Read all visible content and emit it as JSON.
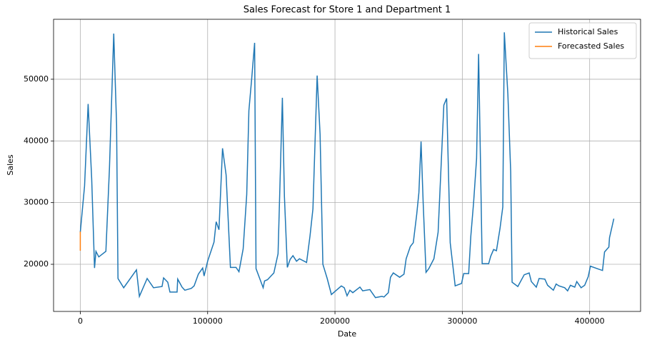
{
  "chart_data": {
    "type": "line",
    "title": "Sales Forecast for Store 1 and Department 1",
    "x_label": "Date",
    "y_label": "Sales",
    "xlim": [
      -21000,
      440000
    ],
    "ylim": [
      12360,
      59720
    ],
    "xticks": [
      0,
      100000,
      200000,
      300000,
      400000
    ],
    "yticks": [
      20000,
      30000,
      40000,
      50000
    ],
    "grid": true,
    "legend": "upper right",
    "series": [
      {
        "name": "Historical Sales",
        "color": "#1f77b4",
        "x": [
          0,
          3350,
          6150,
          8940,
          11170,
          12300,
          14500,
          20100,
          22900,
          26260,
          28500,
          29600,
          34080,
          44100,
          46400,
          52500,
          57500,
          64200,
          65400,
          68700,
          70400,
          76000,
          76500,
          79900,
          82100,
          87200,
          89400,
          92700,
          96100,
          97200,
          100000,
          105000,
          106700,
          108900,
          111700,
          114500,
          117900,
          122300,
          124600,
          127900,
          130700,
          132400,
          134600,
          136900,
          138000,
          143600,
          144700,
          147000,
          152000,
          155300,
          158700,
          160300,
          162600,
          164800,
          167000,
          169800,
          172100,
          177700,
          180400,
          182700,
          186000,
          188300,
          190500,
          193900,
          197200,
          205000,
          207300,
          209500,
          211700,
          214000,
          219600,
          221800,
          227400,
          231800,
          236900,
          238500,
          241900,
          243600,
          245800,
          250800,
          254200,
          255900,
          259200,
          261500,
          264200,
          265900,
          267600,
          269300,
          271500,
          273700,
          277700,
          281000,
          285500,
          287700,
          290500,
          294400,
          299400,
          301100,
          305000,
          306700,
          308900,
          311200,
          312800,
          314500,
          315600,
          320700,
          322300,
          324600,
          326800,
          329600,
          331800,
          333000,
          335800,
          338000,
          339100,
          343600,
          348600,
          352500,
          354200,
          358100,
          360300,
          364800,
          367000,
          371500,
          373700,
          375900,
          380400,
          382700,
          384900,
          388300,
          389900,
          393300,
          396100,
          398900,
          400600,
          407300,
          410100,
          411700,
          415100,
          415600,
          419000
        ],
        "values": [
          25200,
          32700,
          46000,
          33900,
          19400,
          22100,
          21200,
          22100,
          35600,
          57400,
          42600,
          17700,
          16200,
          19100,
          14800,
          17700,
          16200,
          16400,
          17800,
          17100,
          15500,
          15500,
          17600,
          16300,
          15800,
          16100,
          16500,
          18400,
          19400,
          18100,
          20500,
          23600,
          26900,
          25600,
          38800,
          34500,
          19500,
          19500,
          18800,
          22500,
          31300,
          44900,
          50100,
          55900,
          19300,
          16200,
          17300,
          17500,
          18600,
          21700,
          47000,
          31000,
          19500,
          20800,
          21400,
          20500,
          20900,
          20300,
          24600,
          29000,
          50600,
          41100,
          20000,
          17700,
          15100,
          16500,
          16200,
          14900,
          15800,
          15400,
          16300,
          15700,
          15900,
          14600,
          14800,
          14700,
          15400,
          17900,
          18600,
          17900,
          18400,
          20900,
          22900,
          23500,
          28100,
          31600,
          39900,
          29800,
          18700,
          19300,
          20900,
          25200,
          45800,
          46900,
          23500,
          16500,
          16900,
          18500,
          18500,
          24600,
          30100,
          37100,
          54100,
          33900,
          20100,
          20100,
          21300,
          22400,
          22200,
          25800,
          29300,
          57600,
          47500,
          35000,
          17100,
          16400,
          18300,
          18600,
          17200,
          16300,
          17700,
          17600,
          16600,
          15800,
          16800,
          16500,
          16200,
          15700,
          16600,
          16300,
          17200,
          16200,
          16600,
          18000,
          19700,
          19200,
          19000,
          22000,
          22800,
          24300,
          27400
        ]
      },
      {
        "name": "Forecasted Sales",
        "color": "#ff7f0e",
        "x": [
          0,
          0
        ],
        "values": [
          25300,
          22200
        ]
      }
    ]
  }
}
